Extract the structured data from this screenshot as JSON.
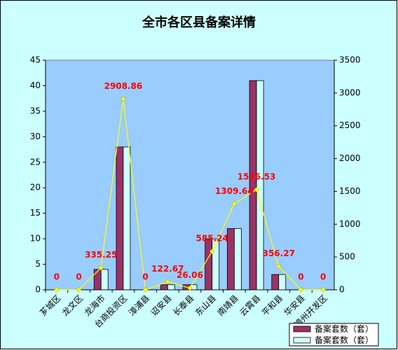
{
  "chart_data": {
    "type": "bar-line",
    "title": "全市各区县备案详情",
    "categories": [
      "芗城区",
      "龙文区",
      "龙海市",
      "台商投资区",
      "漳浦县",
      "诏安县",
      "长泰县",
      "东山县",
      "南靖县",
      "云霄县",
      "平和县",
      "华安县",
      "漳州开发区"
    ],
    "series": [
      {
        "name": "备案套数（套）",
        "type": "bar",
        "color": "#993366",
        "values": [
          0,
          0,
          4,
          28,
          0,
          1,
          1,
          10,
          12,
          41,
          3,
          0,
          0
        ]
      },
      {
        "name": "备案套数（套）",
        "type": "bar",
        "color": "#ccffff",
        "values": [
          0,
          0,
          4,
          28,
          0,
          1,
          1,
          10,
          12,
          41,
          3,
          0,
          0
        ]
      },
      {
        "type": "line",
        "axis": "y2",
        "color": "#ffff00",
        "label_color": "#ff0000",
        "values": [
          0,
          0,
          335.25,
          2908.86,
          0,
          122.67,
          26.06,
          585.24,
          1309.64,
          1526.53,
          356.27,
          0,
          0
        ]
      }
    ],
    "ylim": [
      0,
      45
    ],
    "yticks": [
      0,
      5,
      10,
      15,
      20,
      25,
      30,
      35,
      40,
      45
    ],
    "y2lim": [
      0,
      3500
    ],
    "y2ticks": [
      0,
      500,
      1000,
      1500,
      2000,
      2500,
      3000,
      3500
    ],
    "grid": false,
    "legend": "bottom-right"
  }
}
